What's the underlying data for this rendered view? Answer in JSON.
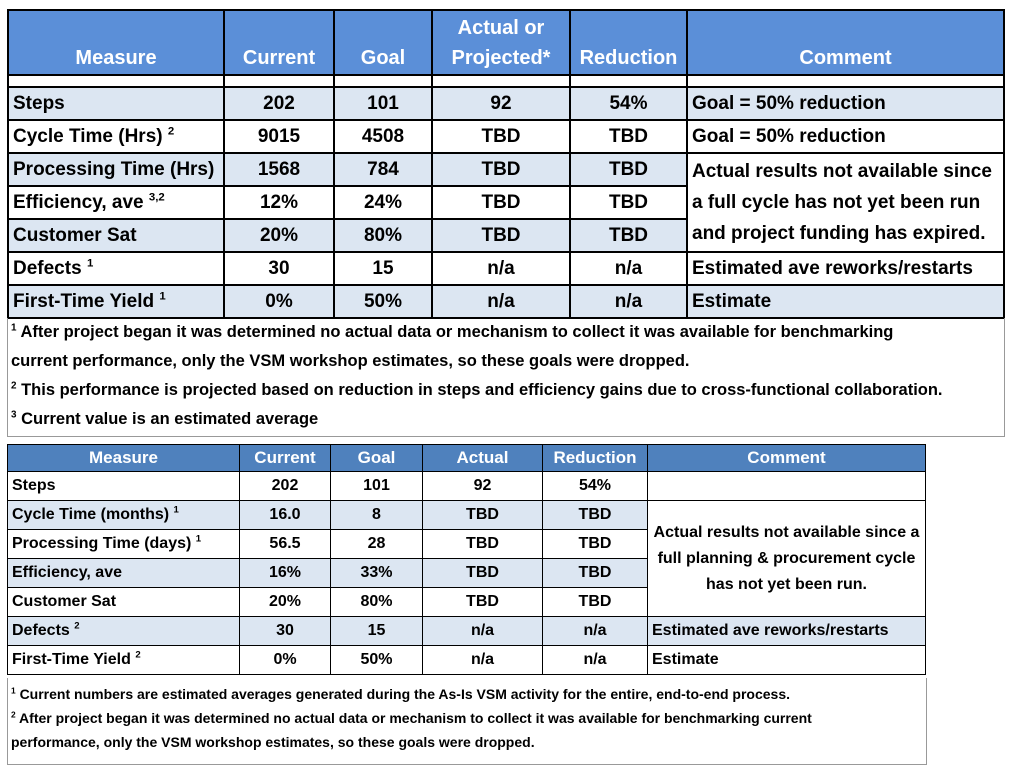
{
  "table1": {
    "headers": {
      "measure": "Measure",
      "current": "Current",
      "goal": "Goal",
      "actual_line1": "Actual or",
      "actual_line2": "Projected*",
      "reduction": "Reduction",
      "comment": "Comment"
    },
    "rows": [
      {
        "measure": "Steps",
        "sup": "",
        "current": "202",
        "goal": "101",
        "actual": "92",
        "reduction": "54%",
        "comment": "Goal = 50% reduction"
      },
      {
        "measure": "Cycle Time (Hrs)",
        "sup": "2",
        "current": "9015",
        "goal": "4508",
        "actual": "TBD",
        "reduction": "TBD",
        "comment": "Goal = 50% reduction"
      },
      {
        "measure": "Processing Time (Hrs)",
        "sup": "",
        "current": "1568",
        "goal": "784",
        "actual": "TBD",
        "reduction": "TBD"
      },
      {
        "measure": "Efficiency, ave",
        "sup": "3,2",
        "current": "12%",
        "goal": "24%",
        "actual": "TBD",
        "reduction": "TBD"
      },
      {
        "measure": "Customer Sat",
        "sup": "",
        "current": "20%",
        "goal": "80%",
        "actual": "TBD",
        "reduction": "TBD"
      },
      {
        "measure": "Defects",
        "sup": "1",
        "current": "30",
        "goal": "15",
        "actual": "n/a",
        "reduction": "n/a",
        "comment": "Estimated ave reworks/restarts"
      },
      {
        "measure": "First-Time Yield",
        "sup": "1",
        "current": "0%",
        "goal": "50%",
        "actual": "n/a",
        "reduction": "n/a",
        "comment": "Estimate"
      }
    ],
    "merged_comment": "Actual results not available since a full cycle has not yet been run and project funding has expired.",
    "notes": [
      {
        "num": "1",
        "lines": [
          "After project began it was determined no actual data or mechanism to collect it was available for benchmarking",
          "current performance, only the VSM workshop estimates, so these goals were dropped."
        ]
      },
      {
        "num": "2",
        "lines": [
          "This performance is projected based on reduction in steps and efficiency gains due to cross-functional collaboration."
        ]
      },
      {
        "num": "3",
        "lines": [
          "Current value is an estimated average"
        ]
      }
    ]
  },
  "table2": {
    "headers": {
      "measure": "Measure",
      "current": "Current",
      "goal": "Goal",
      "actual": "Actual",
      "reduction": "Reduction",
      "comment": "Comment"
    },
    "rows": [
      {
        "measure": "Steps",
        "sup": "",
        "current": "202",
        "goal": "101",
        "actual": "92",
        "reduction": "54%"
      },
      {
        "measure": "Cycle Time (months)",
        "sup": "1",
        "current": "16.0",
        "goal": "8",
        "actual": "TBD",
        "reduction": "TBD"
      },
      {
        "measure": "Processing Time (days)",
        "sup": "1",
        "current": "56.5",
        "goal": "28",
        "actual": "TBD",
        "reduction": "TBD"
      },
      {
        "measure": "Efficiency, ave",
        "sup": "",
        "current": "16%",
        "goal": "33%",
        "actual": "TBD",
        "reduction": "TBD"
      },
      {
        "measure": "Customer Sat",
        "sup": "",
        "current": "20%",
        "goal": "80%",
        "actual": "TBD",
        "reduction": "TBD"
      },
      {
        "measure": "Defects",
        "sup": "2",
        "current": "30",
        "goal": "15",
        "actual": "n/a",
        "reduction": "n/a",
        "comment": "Estimated ave reworks/restarts"
      },
      {
        "measure": "First-Time Yield",
        "sup": "2",
        "current": "0%",
        "goal": "50%",
        "actual": "n/a",
        "reduction": "n/a",
        "comment": "Estimate"
      }
    ],
    "merged_comment": "Actual results not available since a full planning & procurement cycle has not yet been run.",
    "notes": [
      {
        "num": "1",
        "lines": [
          "Current numbers are estimated averages generated during the As-Is VSM activity for the entire, end-to-end process."
        ]
      },
      {
        "num": "2",
        "lines": [
          "After project began it was determined no actual data or mechanism to collect it was available for benchmarking current",
          "performance, only the VSM workshop estimates, so these goals were dropped."
        ]
      }
    ]
  }
}
